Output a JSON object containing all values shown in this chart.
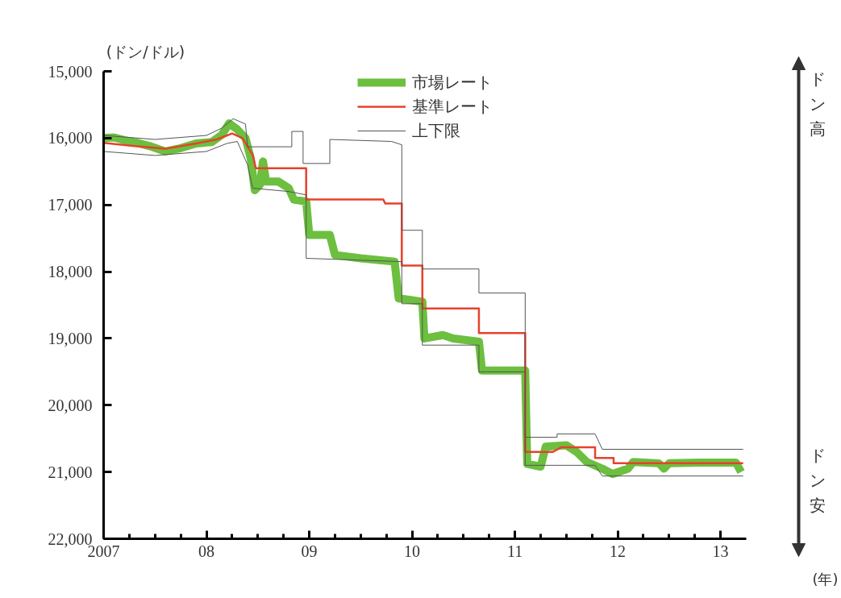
{
  "chart_data": {
    "type": "line",
    "ylabel": "(ドン/ドル)",
    "xlabel": "(年)",
    "annotations": [
      "ドン高",
      "ドン安"
    ],
    "xlim": [
      2007,
      2013.25
    ],
    "ylim": [
      22000,
      15000
    ],
    "xticks": [
      {
        "value": 2007,
        "label": "2007"
      },
      {
        "value": 2007.25,
        "label": null
      },
      {
        "value": 2007.5,
        "label": null
      },
      {
        "value": 2007.75,
        "label": null
      },
      {
        "value": 2008,
        "label": "08"
      },
      {
        "value": 2008.25,
        "label": null
      },
      {
        "value": 2008.5,
        "label": null
      },
      {
        "value": 2008.75,
        "label": null
      },
      {
        "value": 2009,
        "label": "09"
      },
      {
        "value": 2009.25,
        "label": null
      },
      {
        "value": 2009.5,
        "label": null
      },
      {
        "value": 2009.75,
        "label": null
      },
      {
        "value": 2010,
        "label": "10"
      },
      {
        "value": 2010.25,
        "label": null
      },
      {
        "value": 2010.5,
        "label": null
      },
      {
        "value": 2010.75,
        "label": null
      },
      {
        "value": 2011,
        "label": "11"
      },
      {
        "value": 2011.25,
        "label": null
      },
      {
        "value": 2011.5,
        "label": null
      },
      {
        "value": 2011.75,
        "label": null
      },
      {
        "value": 2012,
        "label": "12"
      },
      {
        "value": 2012.25,
        "label": null
      },
      {
        "value": 2012.5,
        "label": null
      },
      {
        "value": 2012.75,
        "label": null
      },
      {
        "value": 2013,
        "label": "13"
      }
    ],
    "yticks": [
      {
        "value": 15000,
        "label": "15,000"
      },
      {
        "value": 16000,
        "label": "16,000"
      },
      {
        "value": 17000,
        "label": "17,000"
      },
      {
        "value": 18000,
        "label": "18,000"
      },
      {
        "value": 19000,
        "label": "19,000"
      },
      {
        "value": 20000,
        "label": "20,000"
      },
      {
        "value": 21000,
        "label": "21,000"
      },
      {
        "value": 22000,
        "label": "22,000"
      }
    ],
    "grid": false,
    "legend": "top",
    "line_style": "solid",
    "series": [
      {
        "name": "市場レート",
        "color": "#6cbf3f",
        "x": [
          2007.0,
          2007.1,
          2007.2,
          2007.3,
          2007.45,
          2007.6,
          2007.75,
          2007.9,
          2008.05,
          2008.15,
          2008.22,
          2008.3,
          2008.38,
          2008.43,
          2008.47,
          2008.52,
          2008.55,
          2008.58,
          2008.7,
          2008.8,
          2008.85,
          2008.97,
          2009.0,
          2009.2,
          2009.25,
          2009.5,
          2009.83,
          2009.87,
          2010.1,
          2010.12,
          2010.3,
          2010.4,
          2010.65,
          2010.68,
          2011.1,
          2011.12,
          2011.25,
          2011.3,
          2011.5,
          2011.6,
          2011.7,
          2011.85,
          2011.95,
          2012.1,
          2012.15,
          2012.4,
          2012.45,
          2012.5,
          2012.8,
          2013.15,
          2013.2
        ],
        "values": [
          16000,
          15990,
          16030,
          16060,
          16120,
          16200,
          16150,
          16080,
          16060,
          15950,
          15780,
          15870,
          16000,
          16300,
          16780,
          16700,
          16350,
          16650,
          16650,
          16750,
          16920,
          16950,
          17450,
          17450,
          17750,
          17800,
          17850,
          18400,
          18450,
          19000,
          18950,
          19000,
          19050,
          19480,
          19480,
          20880,
          20920,
          20620,
          20600,
          20700,
          20850,
          20950,
          21030,
          20950,
          20850,
          20870,
          20950,
          20870,
          20860,
          20860,
          21000
        ]
      },
      {
        "name": "基準レート",
        "color": "#e8412c",
        "x": [
          2007.0,
          2007.3,
          2007.6,
          2007.9,
          2008.1,
          2008.25,
          2008.35,
          2008.45,
          2008.48,
          2008.97,
          2008.97,
          2009.72,
          2009.74,
          2009.9,
          2009.9,
          2010.1,
          2010.1,
          2010.65,
          2010.65,
          2011.1,
          2011.1,
          2011.37,
          2011.45,
          2011.78,
          2011.78,
          2011.96,
          2011.96,
          2013.22
        ],
        "values": [
          16070,
          16120,
          16160,
          16080,
          16020,
          15930,
          16000,
          16250,
          16450,
          16450,
          16920,
          16920,
          16980,
          16980,
          17910,
          17910,
          18550,
          18550,
          18920,
          18920,
          20700,
          20700,
          20630,
          20630,
          20790,
          20790,
          20870,
          20870
        ]
      },
      {
        "name": "上下限",
        "color": "#555555",
        "x": [
          2007.0,
          2007.5,
          2008.0,
          2008.15,
          2008.26,
          2008.38,
          2008.4,
          2008.83,
          2008.83,
          2008.94,
          2008.94,
          2009.2,
          2009.2,
          2009.8,
          2009.9,
          2009.9,
          2010.1,
          2010.1,
          2010.65,
          2010.65,
          2011.1,
          2011.1,
          2011.41,
          2011.41,
          2011.78,
          2011.85,
          2013.22
        ],
        "values": [
          15960,
          16020,
          15960,
          15850,
          15710,
          15790,
          16130,
          16130,
          15900,
          15900,
          16380,
          16380,
          16020,
          16050,
          16100,
          17380,
          17380,
          17960,
          17960,
          18320,
          18320,
          20480,
          20480,
          20430,
          20430,
          20660,
          20660
        ]
      },
      {
        "color": "#555555",
        "x": [
          2007.0,
          2007.5,
          2008.0,
          2008.2,
          2008.3,
          2008.4,
          2008.45,
          2008.8,
          2008.97,
          2008.97,
          2009.9,
          2009.9,
          2010.1,
          2010.1,
          2010.65,
          2010.65,
          2011.1,
          2011.1,
          2011.78,
          2011.85,
          2013.22
        ],
        "values": [
          16200,
          16260,
          16200,
          16080,
          16050,
          16400,
          16750,
          16800,
          16850,
          17800,
          17850,
          18480,
          18480,
          19100,
          19100,
          19500,
          19500,
          20900,
          20900,
          21060,
          21060
        ]
      }
    ]
  }
}
